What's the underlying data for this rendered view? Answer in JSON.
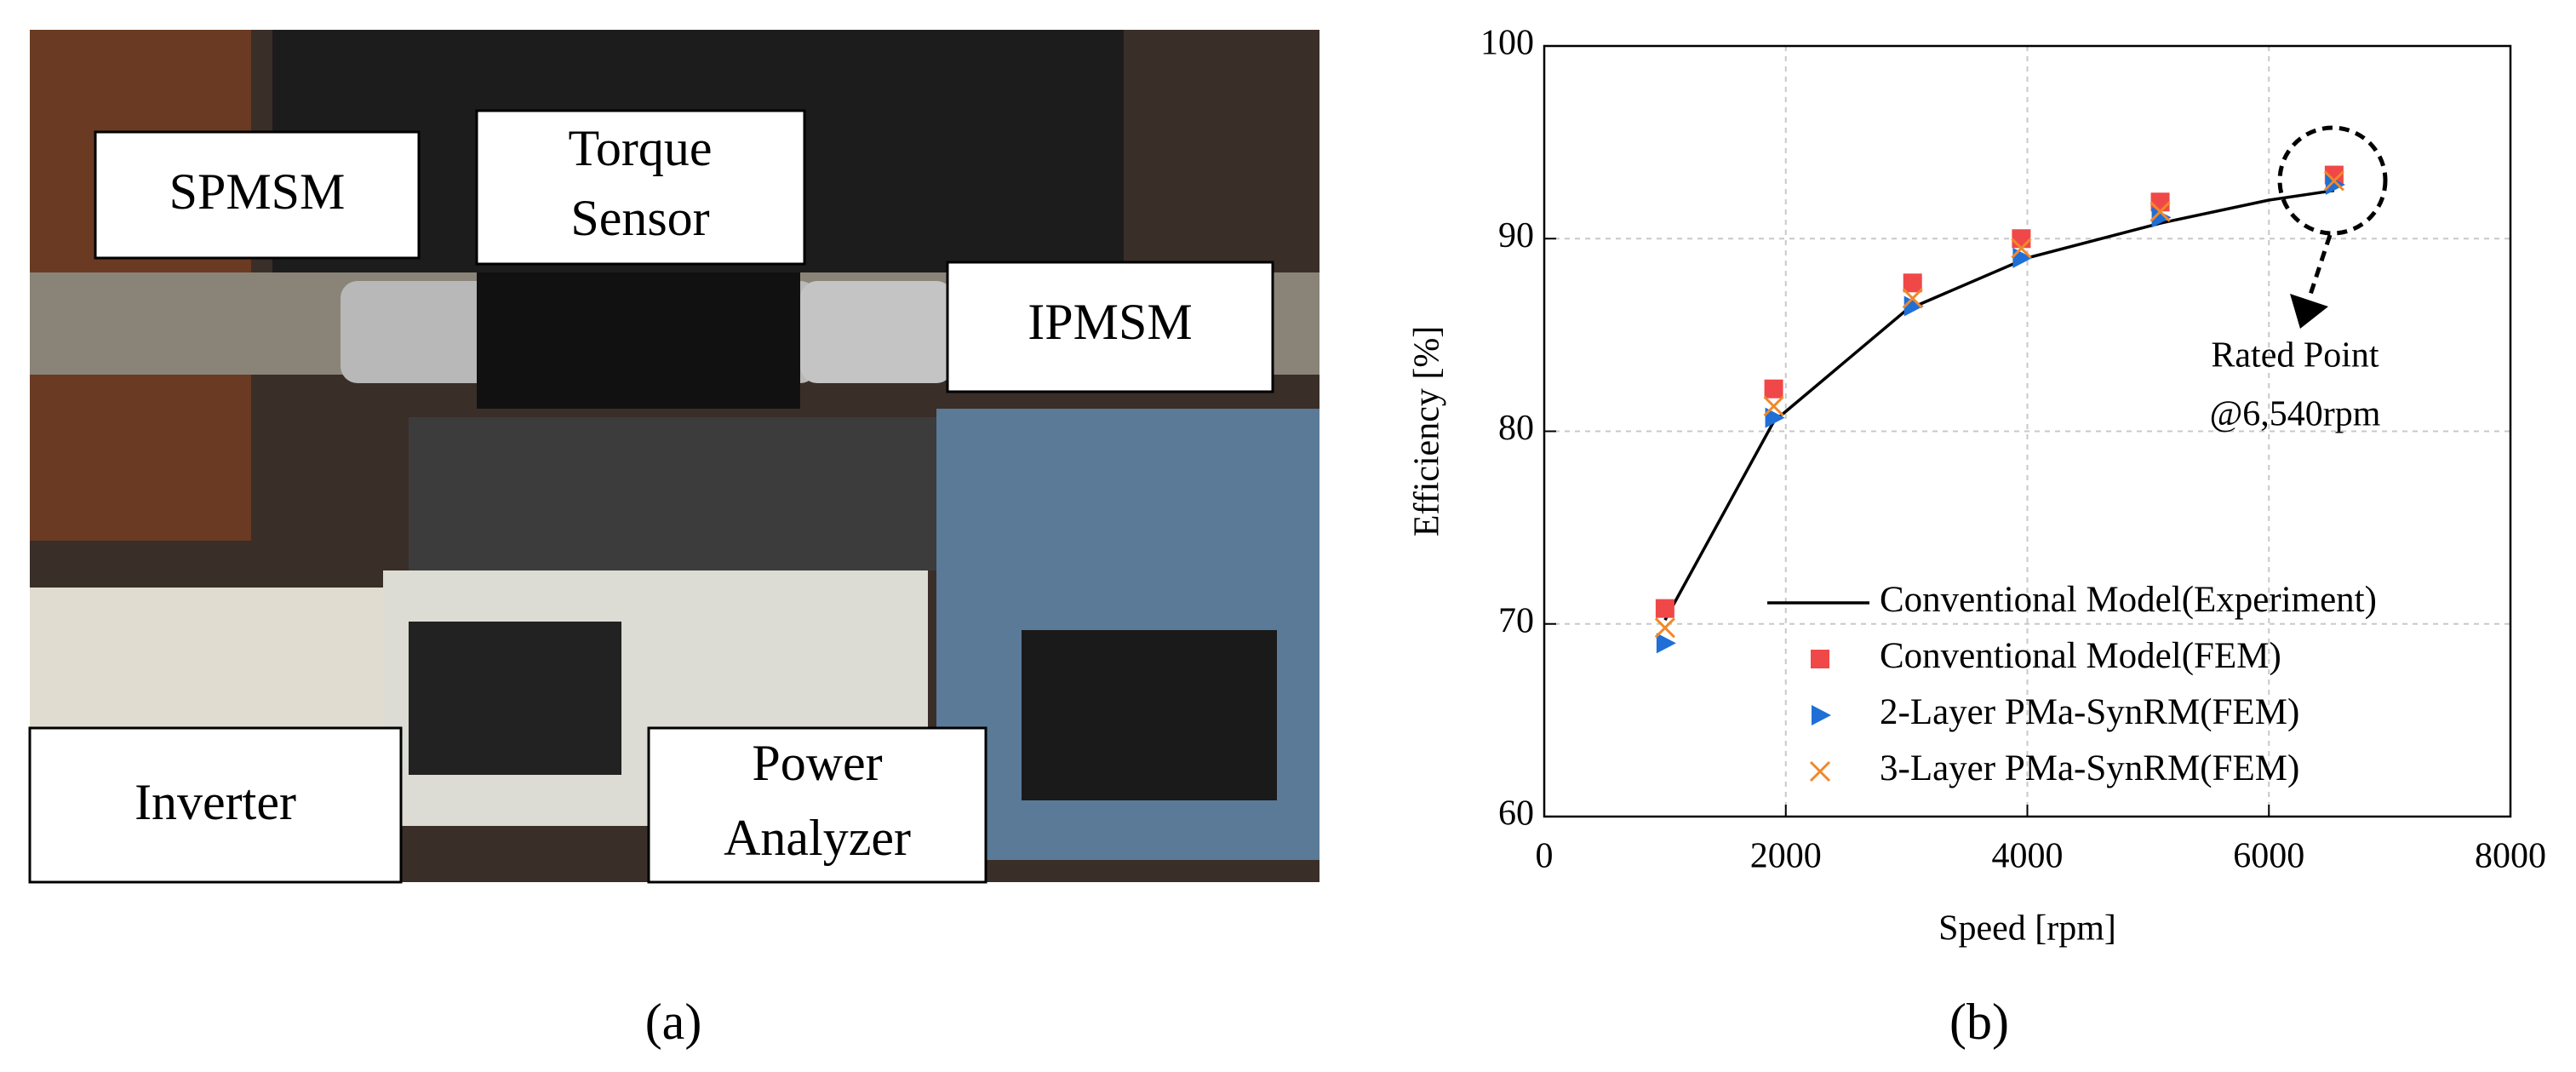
{
  "photo": {
    "labels": [
      "SPMSM",
      "Torque",
      "Sensor",
      "IPMSM",
      "Inverter",
      "Power",
      "Analyzer"
    ]
  },
  "captions": [
    "(a)",
    "(b)"
  ],
  "chart_data": {
    "type": "scatter",
    "xlabel": "Speed [rpm]",
    "ylabel": "Efficiency [%]",
    "xlim": [
      0,
      8000
    ],
    "xticks": [
      0,
      2000,
      4000,
      6000,
      8000
    ],
    "ylim": [
      60,
      100
    ],
    "yticks": [
      60,
      70,
      80,
      90,
      100
    ],
    "grid": true,
    "annotation": [
      "Rated Point",
      "@6,540rpm"
    ],
    "series": [
      {
        "name": "Conventional Model(Experiment)",
        "color": "#000000",
        "style": "line",
        "x": [
          1000,
          1900,
          3000,
          4000,
          5100,
          6000,
          6540
        ],
        "values": [
          70.2,
          80.5,
          86.3,
          89,
          90.8,
          92,
          92.5
        ]
      },
      {
        "name": "Conventional Model(FEM)",
        "color": "#f04848",
        "style": "square",
        "x": [
          1000,
          1900,
          3050,
          3950,
          5100,
          6540
        ],
        "values": [
          70.8,
          82.2,
          87.7,
          90,
          91.9,
          93.3
        ]
      },
      {
        "name": "2-Layer PMa-SynRM(FEM)",
        "color": "#1f6fd6",
        "style": "triangle",
        "x": [
          1000,
          1900,
          3050,
          3950,
          5100,
          6540
        ],
        "values": [
          69,
          80.7,
          86.5,
          89,
          91.1,
          92.8
        ]
      },
      {
        "name": "3-Layer PMa-SynRM(FEM)",
        "color": "#f0882a",
        "style": "cross",
        "x": [
          1000,
          1900,
          3050,
          3950,
          5100,
          6540
        ],
        "values": [
          69.8,
          81.3,
          86.9,
          89.5,
          91.4,
          93
        ]
      }
    ]
  }
}
